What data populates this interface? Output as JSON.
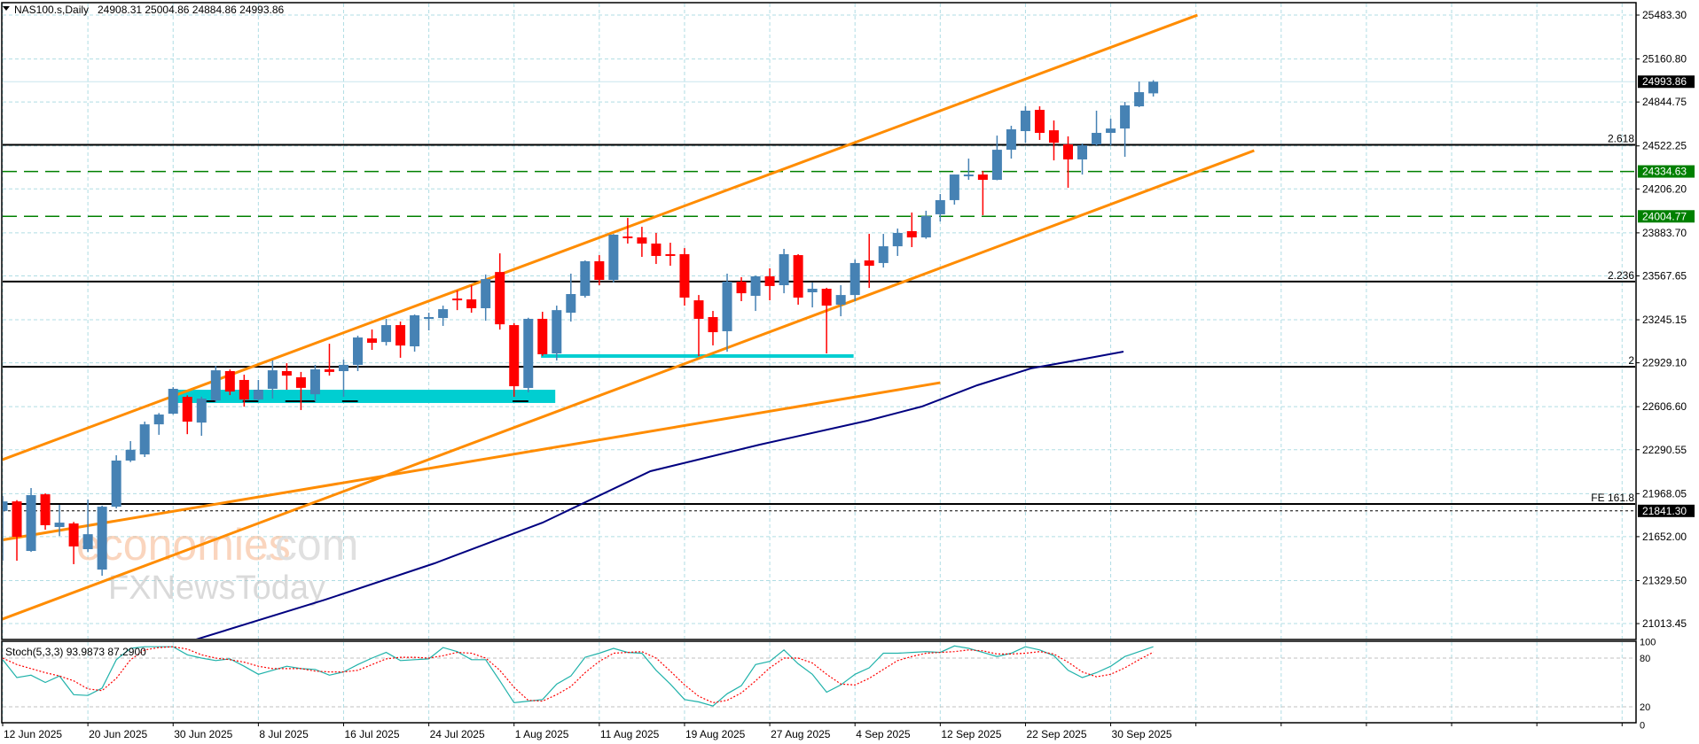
{
  "header": {
    "symbol": "NAS100.s,Daily",
    "ohlc": "24908.31 25004.86 24884.86 24993.86"
  },
  "colors": {
    "bull": "#4682b4",
    "bear": "#ff0000",
    "grid": "#b0dde4",
    "channel": "#ff8c00",
    "ma": "#000080",
    "zone": "#00ced1",
    "level_green": "#008000",
    "stoch_k": "#20b2aa",
    "stoch_d": "#ff0000"
  },
  "price_axis": {
    "ticks": [
      "25483.30",
      "25160.80",
      "24844.75",
      "24522.25",
      "24206.20",
      "23883.70",
      "23567.65",
      "23245.15",
      "22929.10",
      "22606.60",
      "22290.55",
      "21968.05",
      "21652.00",
      "21329.50",
      "21013.45"
    ],
    "markers": [
      {
        "label": "24993.86",
        "price": 24993.86,
        "style": "black"
      },
      {
        "label": "24334.63",
        "price": 24334.63,
        "style": "green"
      },
      {
        "label": "24004.77",
        "price": 24004.77,
        "style": "green"
      },
      {
        "label": "21841.30",
        "price": 21841.3,
        "style": "black"
      }
    ]
  },
  "levels": [
    {
      "label": "2.618",
      "price": 24530
    },
    {
      "label": "2.236",
      "price": 23526
    },
    {
      "label": "2",
      "price": 22900
    },
    {
      "label": "FE 161.8",
      "price": 21892
    }
  ],
  "time_axis": [
    {
      "label": "12 Jun 2025",
      "bar": 0
    },
    {
      "label": "20 Jun 2025",
      "bar": 6
    },
    {
      "label": "30 Jun 2025",
      "bar": 12
    },
    {
      "label": "8 Jul 2025",
      "bar": 18
    },
    {
      "label": "16 Jul 2025",
      "bar": 24
    },
    {
      "label": "24 Jul 2025",
      "bar": 30
    },
    {
      "label": "1 Aug 2025",
      "bar": 36
    },
    {
      "label": "11 Aug 2025",
      "bar": 42
    },
    {
      "label": "19 Aug 2025",
      "bar": 48
    },
    {
      "label": "27 Aug 2025",
      "bar": 54
    },
    {
      "label": "4 Sep 2025",
      "bar": 60
    },
    {
      "label": "12 Sep 2025",
      "bar": 66
    },
    {
      "label": "22 Sep 2025",
      "bar": 72
    },
    {
      "label": "30 Sep 2025",
      "bar": 78
    }
  ],
  "stoch": {
    "label": "Stoch(5,3,3) 93.9873 87.2900",
    "ticks": [
      {
        "label": "100",
        "v": 100
      },
      {
        "label": "80",
        "v": 80
      },
      {
        "label": "20",
        "v": 20
      },
      {
        "label": "0",
        "v": 0
      }
    ]
  },
  "watermark": {
    "brand1": "economies",
    "brand1_suffix": ".com",
    "brand2": "FXNewsToday"
  },
  "chart_data": {
    "type": "candlestick",
    "title": "NAS100.s, Daily",
    "ylim": [
      20900,
      25600
    ],
    "candles_ohlc": [
      [
        21841,
        21950,
        21475,
        21911
      ],
      [
        21911,
        21920,
        21475,
        21651
      ],
      [
        21547,
        22009,
        21540,
        21957
      ],
      [
        21963,
        21970,
        21703,
        21736
      ],
      [
        21723,
        21885,
        21657,
        21755
      ],
      [
        21749,
        21760,
        21450,
        21580
      ],
      [
        21560,
        21925,
        21540,
        21670
      ],
      [
        21410,
        21880,
        21365,
        21872
      ],
      [
        21872,
        22250,
        21860,
        22211
      ],
      [
        22211,
        22354,
        22200,
        22290
      ],
      [
        22256,
        22497,
        22237,
        22477
      ],
      [
        22477,
        22560,
        22400,
        22549
      ],
      [
        22555,
        22750,
        22550,
        22738
      ],
      [
        22679,
        22690,
        22405,
        22497
      ],
      [
        22490,
        22680,
        22393,
        22666
      ],
      [
        22653,
        22906,
        22640,
        22874
      ],
      [
        22868,
        22880,
        22692,
        22718
      ],
      [
        22803,
        22842,
        22607,
        22659
      ],
      [
        22659,
        22803,
        22650,
        22731
      ],
      [
        22738,
        22946,
        22666,
        22874
      ],
      [
        22868,
        22926,
        22731,
        22835
      ],
      [
        22823,
        22862,
        22582,
        22745
      ],
      [
        22698,
        22914,
        22646,
        22881
      ],
      [
        22881,
        23069,
        22835,
        22862
      ],
      [
        22868,
        22952,
        22679,
        22914
      ],
      [
        22914,
        23128,
        22868,
        23115
      ],
      [
        23108,
        23174,
        23024,
        23076
      ],
      [
        23082,
        23252,
        23056,
        23206
      ],
      [
        23206,
        23232,
        22966,
        23056
      ],
      [
        23050,
        23284,
        23011,
        23278
      ],
      [
        23264,
        23297,
        23167,
        23265
      ],
      [
        23258,
        23349,
        23200,
        23323
      ],
      [
        23401,
        23460,
        23316,
        23388
      ],
      [
        23395,
        23499,
        23297,
        23330
      ],
      [
        23330,
        23577,
        23238,
        23544
      ],
      [
        23596,
        23733,
        23173,
        23212
      ],
      [
        23206,
        23220,
        22679,
        22757
      ],
      [
        22744,
        23260,
        22712,
        23252
      ],
      [
        23252,
        23304,
        22980,
        22992
      ],
      [
        22998,
        23349,
        22946,
        23316
      ],
      [
        23297,
        23584,
        23232,
        23434
      ],
      [
        23421,
        23681,
        23408,
        23675
      ],
      [
        23675,
        23720,
        23499,
        23538
      ],
      [
        23538,
        23875,
        23519,
        23870
      ],
      [
        23857,
        23993,
        23805,
        23844
      ],
      [
        23850,
        23928,
        23707,
        23805
      ],
      [
        23805,
        23883,
        23655,
        23714
      ],
      [
        23727,
        23811,
        23642,
        23714
      ],
      [
        23727,
        23772,
        23349,
        23408
      ],
      [
        23388,
        23427,
        22978,
        23252
      ],
      [
        23265,
        23310,
        23057,
        23154
      ],
      [
        23161,
        23584,
        23011,
        23525
      ],
      [
        23525,
        23558,
        23382,
        23440
      ],
      [
        23421,
        23570,
        23310,
        23564
      ],
      [
        23564,
        23623,
        23388,
        23493
      ],
      [
        23499,
        23766,
        23440,
        23727
      ],
      [
        23720,
        23727,
        23356,
        23408
      ],
      [
        23447,
        23519,
        23336,
        23473
      ],
      [
        23473,
        23480,
        22998,
        23349
      ],
      [
        23356,
        23499,
        23271,
        23427
      ],
      [
        23427,
        23688,
        23382,
        23662
      ],
      [
        23681,
        23876,
        23479,
        23642
      ],
      [
        23662,
        23876,
        23629,
        23785
      ],
      [
        23785,
        23915,
        23714,
        23883
      ],
      [
        23896,
        24033,
        23779,
        23850
      ],
      [
        23850,
        24046,
        23840,
        24007
      ],
      [
        24020,
        24169,
        23967,
        24124
      ],
      [
        24124,
        24312,
        24091,
        24312
      ],
      [
        24306,
        24429,
        24273,
        24312
      ],
      [
        24312,
        24338,
        24013,
        24273
      ],
      [
        24273,
        24598,
        24270,
        24494
      ],
      [
        24494,
        24670,
        24429,
        24644
      ],
      [
        24631,
        24813,
        24546,
        24781
      ],
      [
        24787,
        24813,
        24566,
        24618
      ],
      [
        24637,
        24709,
        24416,
        24546
      ],
      [
        24533,
        24592,
        24215,
        24423
      ],
      [
        24423,
        24540,
        24312,
        24527
      ],
      [
        24533,
        24781,
        24527,
        24618
      ],
      [
        24618,
        24722,
        24527,
        24650
      ],
      [
        24650,
        24846,
        24442,
        24820
      ],
      [
        24813,
        24995,
        24807,
        24917
      ],
      [
        24908.31,
        25004.86,
        24884.86,
        24993.86
      ]
    ],
    "moving_average": [
      [
        13,
        20877
      ],
      [
        22.7,
        21189
      ],
      [
        30.4,
        21456
      ],
      [
        38,
        21755
      ],
      [
        45.6,
        22133
      ],
      [
        53.3,
        22328
      ],
      [
        60.9,
        22504
      ],
      [
        64.7,
        22608
      ],
      [
        68.6,
        22764
      ],
      [
        72.4,
        22888
      ],
      [
        76.2,
        22959
      ],
      [
        78.9,
        23011
      ]
    ],
    "trendlines": [
      {
        "name": "channel-upper",
        "from": [
          -0.19,
          22211
        ],
        "to": [
          84.1,
          25483
        ]
      },
      {
        "name": "channel-lower",
        "from": [
          -0.19,
          21040
        ],
        "to": [
          88.1,
          24488
        ]
      },
      {
        "name": "support-line",
        "from": [
          -0.19,
          21625
        ],
        "to": [
          66,
          22783
        ]
      }
    ],
    "zones": [
      {
        "from_bar": 12,
        "to_bar": 38.9,
        "top": 22731,
        "bottom": 22634
      },
      {
        "from_bar": 37.9,
        "to_bar": 59.9,
        "top": 22992,
        "bottom": 22966
      }
    ],
    "marks": [
      [
        13.9,
        15,
        22647
      ],
      [
        16.9,
        18,
        22647
      ],
      [
        19.9,
        22,
        22647
      ],
      [
        23.9,
        25,
        22647
      ],
      [
        35.9,
        37,
        22647
      ]
    ],
    "stoch_k": [
      78,
      56,
      59,
      50,
      58,
      35,
      34,
      43,
      78,
      92,
      94,
      94,
      94,
      84,
      80,
      77,
      79,
      70,
      60,
      65,
      70,
      67,
      66,
      59,
      63,
      72,
      80,
      87,
      77,
      78,
      79,
      93,
      88,
      78,
      78,
      52,
      25,
      27,
      29,
      48,
      58,
      81,
      86,
      92,
      87,
      86,
      65,
      48,
      29,
      26,
      21,
      36,
      46,
      72,
      76,
      90,
      73,
      60,
      38,
      47,
      60,
      68,
      86,
      86,
      87,
      88,
      87,
      95,
      92,
      87,
      82,
      86,
      94,
      90,
      83,
      65,
      56,
      62,
      70,
      82,
      88,
      93.99
    ],
    "stoch_d": [
      80,
      72,
      67,
      62,
      58,
      52,
      42,
      40,
      55,
      78,
      90,
      93,
      94,
      91,
      84,
      80,
      78,
      75,
      70,
      67,
      67,
      67,
      64,
      63,
      63,
      65,
      72,
      79,
      81,
      81,
      80,
      83,
      87,
      86,
      80,
      65,
      44,
      28,
      27,
      35,
      45,
      62,
      76,
      86,
      87,
      88,
      80,
      64,
      47,
      33,
      25,
      28,
      37,
      52,
      68,
      80,
      80,
      74,
      60,
      48,
      47,
      55,
      66,
      77,
      82,
      86,
      87,
      88,
      90,
      89,
      85,
      85,
      86,
      88,
      85,
      75,
      63,
      57,
      60,
      68,
      78,
      87.29
    ]
  }
}
